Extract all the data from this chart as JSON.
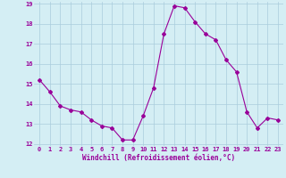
{
  "x": [
    0,
    1,
    2,
    3,
    4,
    5,
    6,
    7,
    8,
    9,
    10,
    11,
    12,
    13,
    14,
    15,
    16,
    17,
    18,
    19,
    20,
    21,
    22,
    23
  ],
  "y": [
    15.2,
    14.6,
    13.9,
    13.7,
    13.6,
    13.2,
    12.9,
    12.8,
    12.2,
    12.2,
    13.4,
    14.8,
    17.5,
    18.9,
    18.8,
    18.1,
    17.5,
    17.2,
    16.2,
    15.6,
    13.6,
    12.8,
    13.3,
    13.2
  ],
  "line_color": "#990099",
  "marker": "D",
  "marker_size": 2,
  "bg_color": "#d4eef4",
  "grid_color": "#aaccdd",
  "xlabel": "Windchill (Refroidissement éolien,°C)",
  "xlabel_color": "#990099",
  "tick_color": "#990099",
  "ylim": [
    12,
    19
  ],
  "xlim": [
    -0.5,
    23.5
  ],
  "yticks": [
    12,
    13,
    14,
    15,
    16,
    17,
    18,
    19
  ],
  "xticks": [
    0,
    1,
    2,
    3,
    4,
    5,
    6,
    7,
    8,
    9,
    10,
    11,
    12,
    13,
    14,
    15,
    16,
    17,
    18,
    19,
    20,
    21,
    22,
    23
  ],
  "tick_fontsize": 5,
  "xlabel_fontsize": 5.5
}
